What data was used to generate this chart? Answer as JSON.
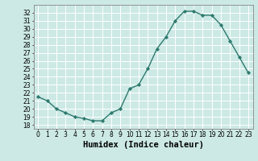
{
  "x": [
    0,
    1,
    2,
    3,
    4,
    5,
    6,
    7,
    8,
    9,
    10,
    11,
    12,
    13,
    14,
    15,
    16,
    17,
    18,
    19,
    20,
    21,
    22,
    23
  ],
  "y": [
    21.5,
    21.0,
    20.0,
    19.5,
    19.0,
    18.8,
    18.5,
    18.5,
    19.5,
    20.0,
    22.5,
    23.0,
    25.0,
    27.5,
    29.0,
    31.0,
    32.2,
    32.2,
    31.7,
    31.7,
    30.5,
    28.5,
    26.5,
    24.5
  ],
  "xlabel": "Humidex (Indice chaleur)",
  "ylabel": "",
  "ylim": [
    17.5,
    33.0
  ],
  "xlim": [
    -0.5,
    23.5
  ],
  "line_color": "#2d7a6e",
  "marker": "D",
  "marker_size": 2.2,
  "bg_color": "#cce9e5",
  "grid_color": "#ffffff",
  "yticks": [
    18,
    19,
    20,
    21,
    22,
    23,
    24,
    25,
    26,
    27,
    28,
    29,
    30,
    31,
    32
  ],
  "xticks": [
    0,
    1,
    2,
    3,
    4,
    5,
    6,
    7,
    8,
    9,
    10,
    11,
    12,
    13,
    14,
    15,
    16,
    17,
    18,
    19,
    20,
    21,
    22,
    23
  ],
  "tick_fontsize": 5.5,
  "xlabel_fontsize": 7.5,
  "line_width": 1.0
}
